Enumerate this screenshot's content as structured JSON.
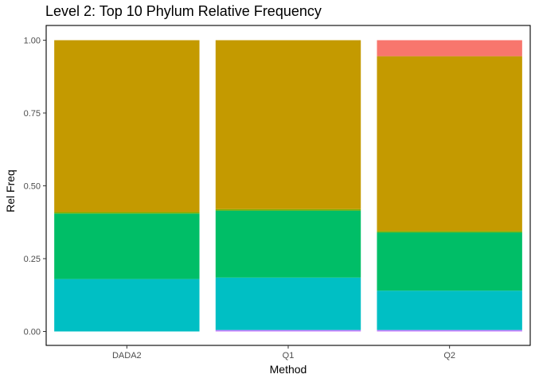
{
  "chart_data": {
    "type": "bar",
    "stacked": true,
    "title": "Level 2: Top 10 Phylum Relative Frequency",
    "xlabel": "Method",
    "ylabel": "Rel Freq",
    "categories": [
      "DADA2",
      "Q1",
      "Q2"
    ],
    "ylim": [
      0,
      1
    ],
    "yticks": [
      "0.00",
      "0.25",
      "0.50",
      "0.75",
      "1.00"
    ],
    "grid": false,
    "legend": "none",
    "series": [
      {
        "color": "#C77CFF",
        "values": [
          0.0,
          0.005,
          0.005
        ]
      },
      {
        "color": "#00BFC4",
        "values": [
          0.18,
          0.18,
          0.135
        ]
      },
      {
        "color": "#00BE67",
        "values": [
          0.225,
          0.23,
          0.2
        ]
      },
      {
        "color": "#7CAE00",
        "values": [
          0.005,
          0.005,
          0.005
        ]
      },
      {
        "color": "#C49A00",
        "values": [
          0.59,
          0.58,
          0.6
        ]
      },
      {
        "color": "#F8766D",
        "values": [
          0.0,
          0.0,
          0.055
        ]
      }
    ]
  }
}
